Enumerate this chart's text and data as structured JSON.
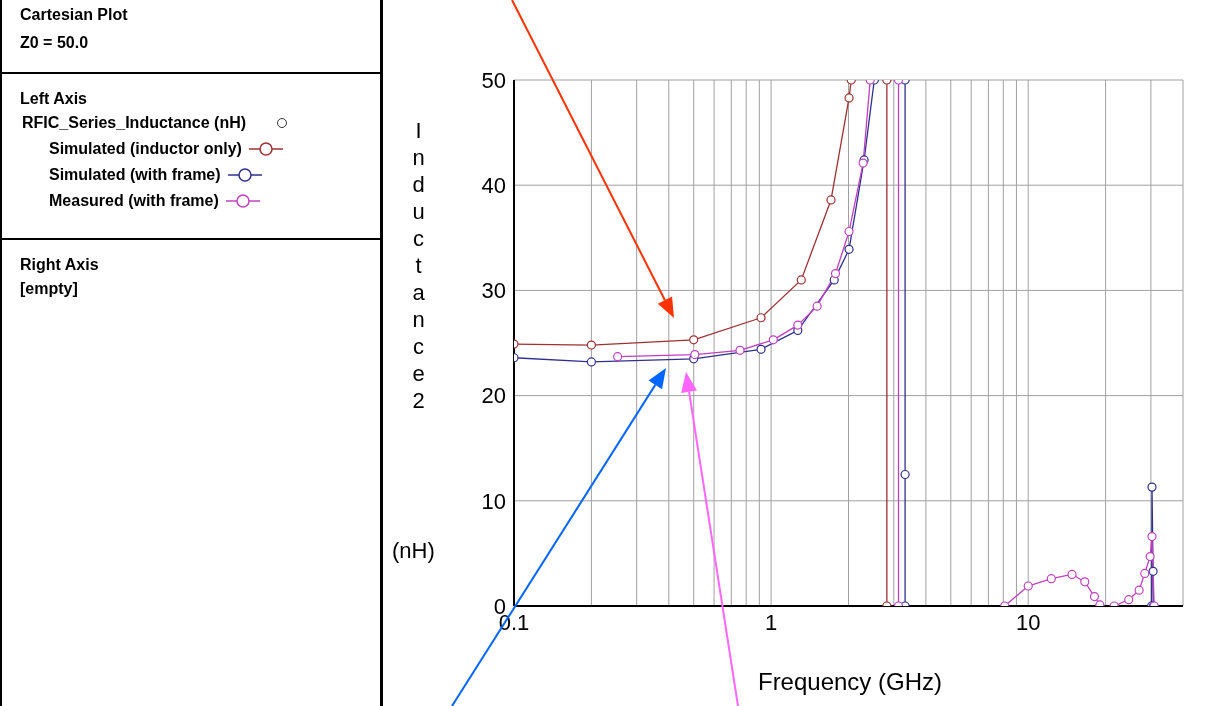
{
  "chart_data": {
    "type": "line",
    "title": "Cartesian Plot",
    "subtitle": "Z0 = 50.0",
    "legend_title": "RFIC_Series_Inductance (nH)",
    "xlabel": "Frequency (GHz)",
    "ylabel": "Inductance2 (nH)",
    "annotations": [
      "Left Axis",
      "Right Axis",
      "[empty]"
    ],
    "log": "x",
    "xlim": [
      0.1,
      40
    ],
    "xticks": [
      0.1,
      {
        "value": 0.2,
        "label": null
      },
      {
        "value": 0.3,
        "label": null
      },
      {
        "value": 0.4,
        "label": null
      },
      {
        "value": 0.5,
        "label": null
      },
      {
        "value": 0.6,
        "label": null
      },
      {
        "value": 0.7,
        "label": null
      },
      {
        "value": 0.8,
        "label": null
      },
      {
        "value": 0.9,
        "label": null
      },
      1,
      {
        "value": 2,
        "label": null
      },
      {
        "value": 3,
        "label": null
      },
      {
        "value": 4,
        "label": null
      },
      {
        "value": 5,
        "label": null
      },
      {
        "value": 6,
        "label": null
      },
      {
        "value": 7,
        "label": null
      },
      {
        "value": 8,
        "label": null
      },
      {
        "value": 9,
        "label": null
      },
      10,
      {
        "value": 20,
        "label": null
      },
      {
        "value": 30,
        "label": null
      },
      {
        "value": 40,
        "label": null
      }
    ],
    "ylim": [
      0,
      50
    ],
    "yticks": [
      0,
      10,
      20,
      30,
      40,
      50
    ],
    "grid": true,
    "legend": "left",
    "marker": "circle",
    "line_style": "solid",
    "series": [
      {
        "name": "Simulated (inductor only)",
        "color": "#a03030",
        "x": [
          0.1,
          0.2,
          0.5,
          0.914,
          1.31,
          1.71,
          2.01,
          2.05,
          2.4,
          2.82,
          2.82
        ],
        "values": [
          24.9,
          24.8,
          25.3,
          27.4,
          31.0,
          38.6,
          48.3,
          50,
          null,
          50,
          0
        ]
      },
      {
        "name": "Simulated (with frame)",
        "color": "#303090",
        "x": [
          0.1,
          0.2,
          0.5,
          0.914,
          1.27,
          1.76,
          2.01,
          2.3,
          2.52,
          2.9,
          3.32,
          3.32,
          3.32,
          10,
          30.2,
          30.3,
          30.6,
          30.7
        ],
        "values": [
          23.6,
          23.2,
          23.5,
          24.4,
          26.2,
          31.0,
          33.9,
          42.4,
          50,
          null,
          50,
          12.5,
          0,
          null,
          0,
          11.3,
          3.3,
          0
        ]
      },
      {
        "name": "Measured (with frame)",
        "color": "#c040c0",
        "x": [
          0.253,
          0.505,
          0.757,
          1.02,
          1.27,
          1.51,
          1.78,
          2.01,
          2.28,
          2.43,
          2.8,
          3.13,
          3.13,
          5,
          8.1,
          10,
          12.3,
          14.8,
          16.6,
          18.1,
          19.0,
          20,
          21.6,
          24.6,
          27.0,
          28.4,
          29.8,
          30.3,
          30.9
        ],
        "values": [
          23.7,
          23.9,
          24.3,
          25.3,
          26.7,
          28.5,
          31.6,
          35.6,
          42.1,
          50,
          null,
          50,
          0,
          null,
          0,
          1.9,
          2.6,
          3.0,
          2.3,
          0.9,
          0.1,
          null,
          0,
          0.6,
          1.5,
          3.1,
          4.7,
          6.6,
          0
        ]
      }
    ]
  }
}
